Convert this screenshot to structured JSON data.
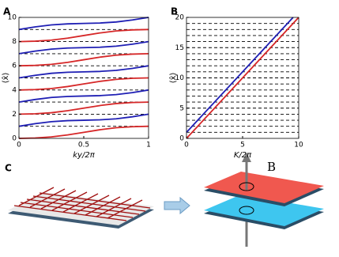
{
  "chart_data": [
    {
      "type": "line",
      "panel": "A",
      "xlabel": "ky/2π",
      "ylabel": "⟨x̂⟩",
      "x": [
        0,
        0.125,
        0.25,
        0.375,
        0.5,
        0.625,
        0.75,
        0.875,
        1
      ],
      "xlim": [
        0,
        1
      ],
      "ylim": [
        0,
        10
      ],
      "xticks": [
        0,
        0.5,
        1
      ],
      "yticks": [
        0,
        2,
        4,
        6,
        8,
        10
      ],
      "hlines": [
        1,
        2,
        3,
        4,
        5,
        6,
        7,
        8,
        9
      ],
      "series": [
        {
          "color": "#d62728",
          "values": [
            0,
            0.035,
            0.12,
            0.285,
            0.5,
            0.715,
            0.88,
            0.965,
            1
          ]
        },
        {
          "color": "#d62728",
          "values": [
            2,
            2.035,
            2.12,
            2.285,
            2.5,
            2.715,
            2.88,
            2.965,
            3
          ]
        },
        {
          "color": "#d62728",
          "values": [
            4,
            4.035,
            4.12,
            4.285,
            4.5,
            4.715,
            4.88,
            4.965,
            5
          ]
        },
        {
          "color": "#d62728",
          "values": [
            6,
            6.035,
            6.12,
            6.285,
            6.5,
            6.715,
            6.88,
            6.965,
            7
          ]
        },
        {
          "color": "#d62728",
          "values": [
            8,
            8.035,
            8.12,
            8.285,
            8.5,
            8.715,
            8.88,
            8.965,
            9
          ]
        },
        {
          "color": "#1f1fb4",
          "values": [
            1,
            1.215,
            1.38,
            1.465,
            1.5,
            1.535,
            1.62,
            1.785,
            2
          ]
        },
        {
          "color": "#1f1fb4",
          "values": [
            3,
            3.215,
            3.38,
            3.465,
            3.5,
            3.535,
            3.62,
            3.785,
            4
          ]
        },
        {
          "color": "#1f1fb4",
          "values": [
            5,
            5.215,
            5.38,
            5.465,
            5.5,
            5.535,
            5.62,
            5.785,
            6
          ]
        },
        {
          "color": "#1f1fb4",
          "values": [
            7,
            7.215,
            7.38,
            7.465,
            7.5,
            7.535,
            7.62,
            7.785,
            8
          ]
        },
        {
          "color": "#1f1fb4",
          "values": [
            9,
            9.215,
            9.38,
            9.465,
            9.5,
            9.535,
            9.62,
            9.785,
            10
          ]
        }
      ]
    },
    {
      "type": "line",
      "panel": "B",
      "xlabel": "K/2π",
      "ylabel": "⟨x̂⟩",
      "x": [
        0,
        9.5,
        10
      ],
      "xlim": [
        0,
        10
      ],
      "ylim": [
        0,
        20
      ],
      "xticks": [
        0,
        5,
        10
      ],
      "yticks": [
        0,
        5,
        10,
        15,
        20
      ],
      "hlines": [
        1,
        2,
        3,
        4,
        5,
        6,
        7,
        8,
        9,
        10,
        11,
        12,
        13,
        14,
        15,
        16,
        17,
        18,
        19
      ],
      "series": [
        {
          "color": "#1f1fb4",
          "values": [
            1,
            20,
            null
          ]
        },
        {
          "color": "#d62728",
          "values": [
            0,
            19,
            20
          ]
        }
      ]
    }
  ],
  "panel_c": {
    "label": "C",
    "field_label": "B"
  }
}
